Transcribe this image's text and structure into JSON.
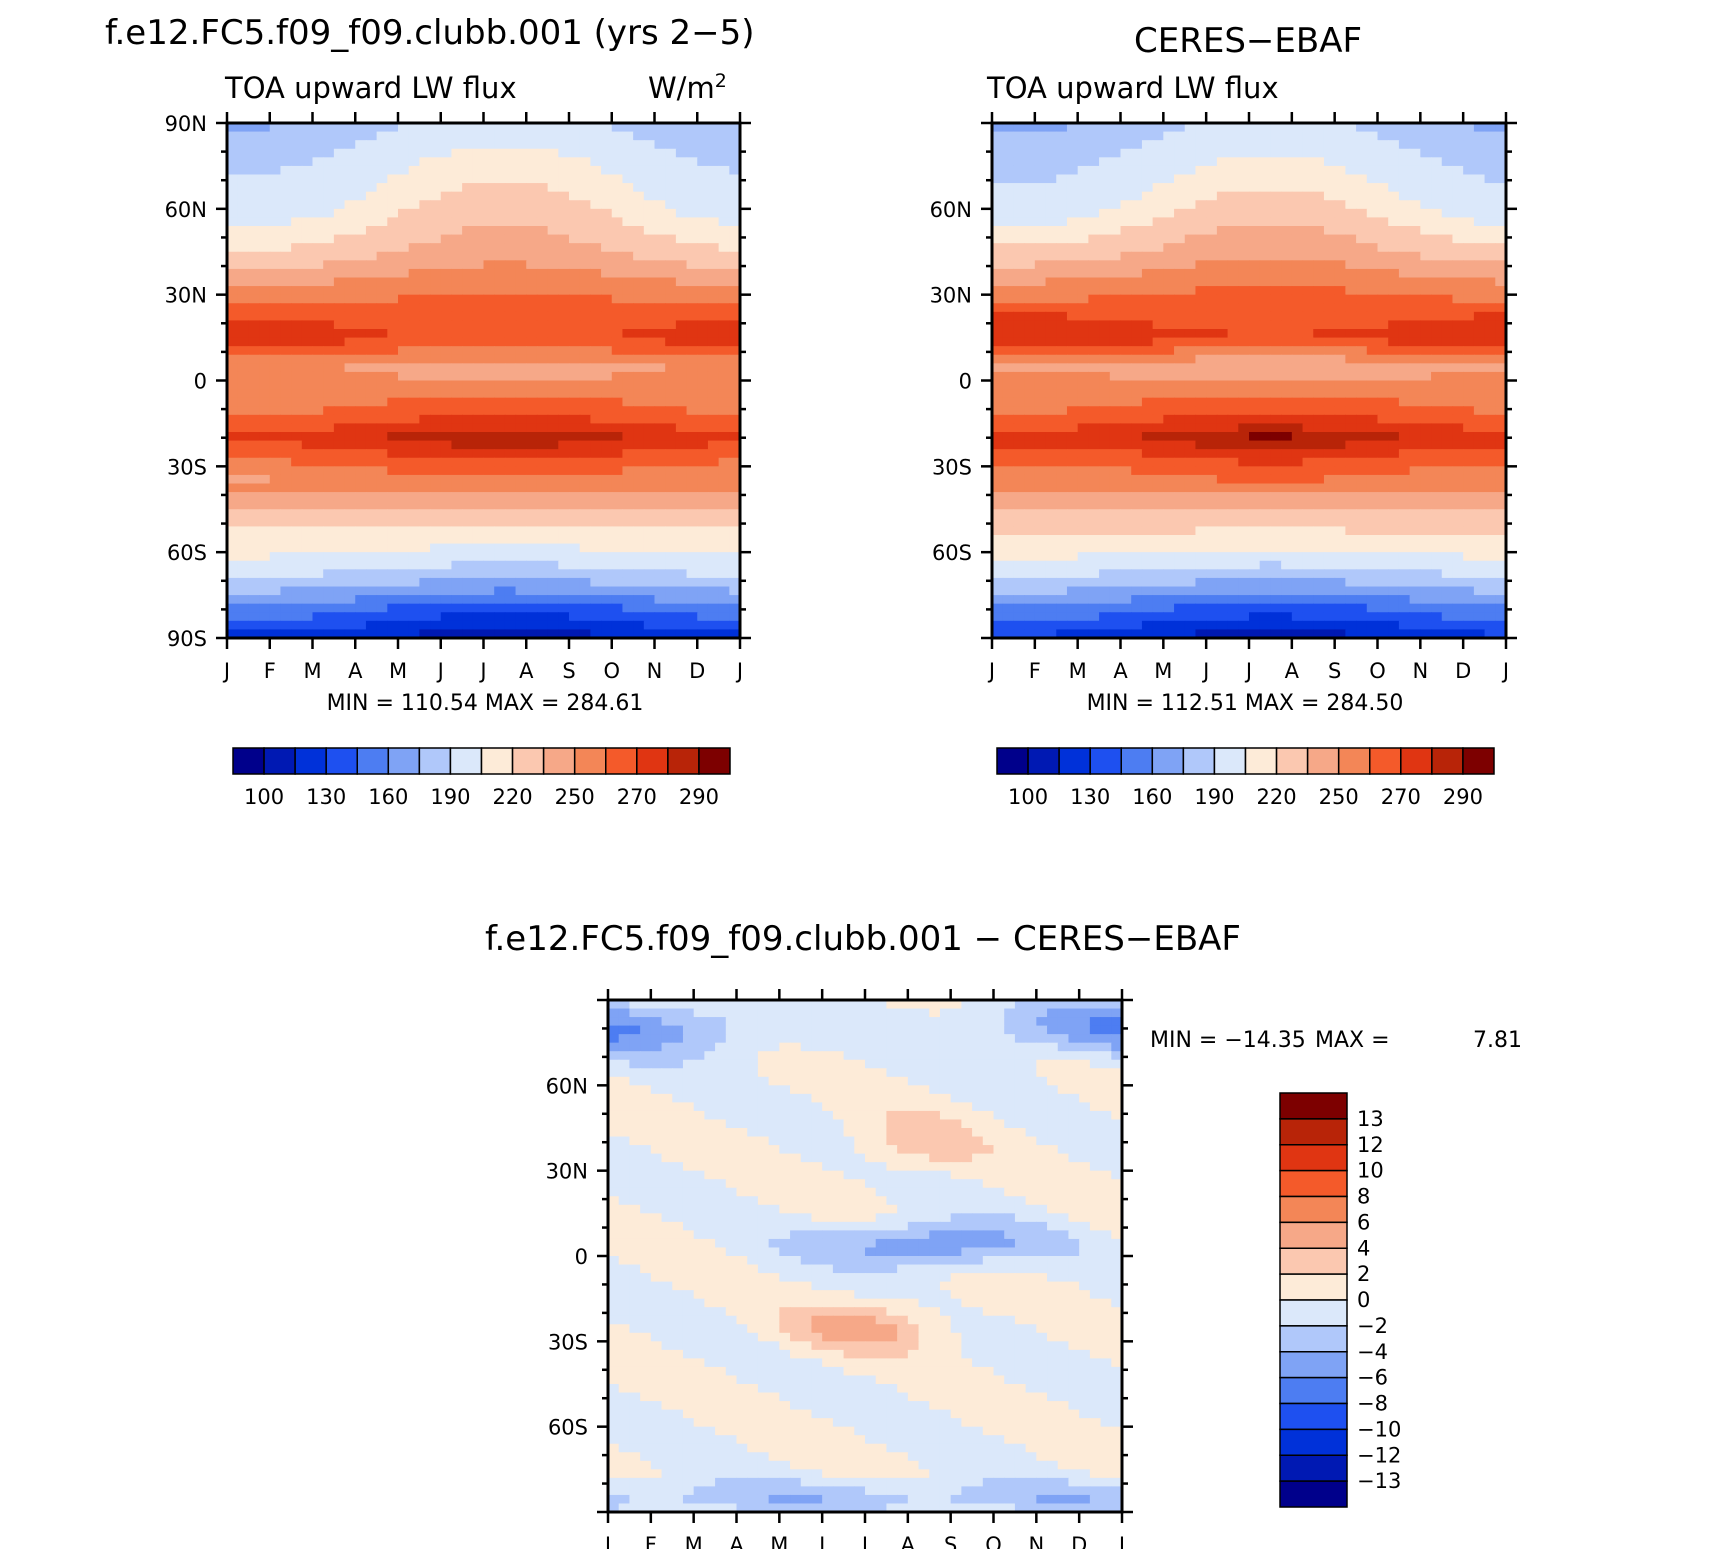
{
  "colors": {
    "levels": [
      "#00008b",
      "#0019b3",
      "#0031d9",
      "#1e50f0",
      "#4d7df2",
      "#7fa3f5",
      "#b0c8fa",
      "#dbe8fa",
      "#fdebd8",
      "#fbc8b0",
      "#f6a888",
      "#f38657",
      "#f45a2a",
      "#e03512",
      "#b82408",
      "#7d0000"
    ]
  },
  "chart_data": [
    {
      "type": "heatmap",
      "id": "model",
      "title": "f.e12.FC5.f09_f09.clubb.001 (yrs 2−5)",
      "subtitle_left": "TOA upward LW flux",
      "units_base": "W/m",
      "units_exp": "2",
      "x_tick_labels": [
        "J",
        "F",
        "M",
        "A",
        "M",
        "J",
        "J",
        "A",
        "S",
        "O",
        "N",
        "D",
        "J"
      ],
      "y_tick_labels": [
        "90N",
        "60N",
        "30N",
        "0",
        "30S",
        "60S",
        "90S"
      ],
      "ylim": [
        -90,
        90
      ],
      "stats": "MIN = 110.54 MAX = 284.61",
      "min": 110.54,
      "max": 284.61,
      "colorbar_labels": [
        "100",
        "130",
        "160",
        "190",
        "220",
        "250",
        "270",
        "290"
      ],
      "profile": [
        [
          90,
          200
        ],
        [
          75,
          215
        ],
        [
          60,
          225
        ],
        [
          45,
          238
        ],
        [
          30,
          258
        ],
        [
          15,
          272
        ],
        [
          5,
          248
        ],
        [
          0,
          252
        ],
        [
          -10,
          262
        ],
        [
          -20,
          278
        ],
        [
          -30,
          262
        ],
        [
          -45,
          238
        ],
        [
          -60,
          220
        ],
        [
          -70,
          195
        ],
        [
          -80,
          160
        ],
        [
          -90,
          130
        ]
      ]
    },
    {
      "type": "heatmap",
      "id": "obs",
      "title": "CERES−EBAF",
      "subtitle_left": "TOA upward LW flux",
      "x_tick_labels": [
        "J",
        "F",
        "M",
        "A",
        "M",
        "J",
        "J",
        "A",
        "S",
        "O",
        "N",
        "D",
        "J"
      ],
      "y_tick_labels": [
        "60N",
        "30N",
        "0",
        "30S",
        "60S"
      ],
      "ylim": [
        -90,
        90
      ],
      "stats": "MIN = 112.51 MAX = 284.50",
      "min": 112.51,
      "max": 284.5,
      "colorbar_labels": [
        "100",
        "130",
        "160",
        "190",
        "220",
        "250",
        "270",
        "290"
      ],
      "profile": [
        [
          90,
          198
        ],
        [
          75,
          212
        ],
        [
          60,
          224
        ],
        [
          45,
          240
        ],
        [
          30,
          260
        ],
        [
          15,
          275
        ],
        [
          5,
          245
        ],
        [
          0,
          250
        ],
        [
          -10,
          263
        ],
        [
          -20,
          279
        ],
        [
          -30,
          263
        ],
        [
          -45,
          240
        ],
        [
          -60,
          221
        ],
        [
          -70,
          196
        ],
        [
          -80,
          162
        ],
        [
          -90,
          132
        ]
      ]
    },
    {
      "type": "heatmap",
      "id": "diff",
      "title": "f.e12.FC5.f09_f09.clubb.001 − CERES−EBAF",
      "x_tick_labels": [
        "J",
        "F",
        "M",
        "A",
        "M",
        "J",
        "J",
        "A",
        "S",
        "O",
        "N",
        "D",
        "J"
      ],
      "y_tick_labels": [
        "60N",
        "30N",
        "0",
        "30S",
        "60S"
      ],
      "ylim": [
        -90,
        90
      ],
      "stats_min_label": "MIN = −14.35",
      "stats_max_label": "MAX =",
      "stats_max_value": "7.81",
      "min": -14.35,
      "max": 7.81,
      "colorbar_labels": [
        "13",
        "12",
        "10",
        "8",
        "6",
        "4",
        "2",
        "0",
        "−2",
        "−4",
        "−6",
        "−8",
        "−10",
        "−12",
        "−13"
      ]
    }
  ]
}
